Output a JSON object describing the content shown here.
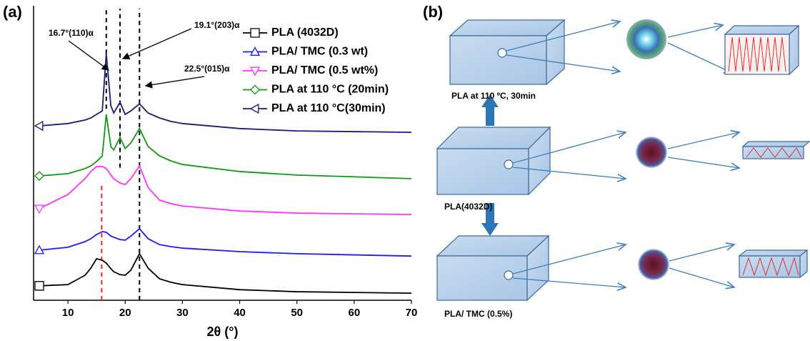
{
  "chart_data": {
    "type": "line",
    "panel_label": "(a)",
    "x_label": "2θ (°)",
    "xlim": [
      4,
      70
    ],
    "xticks": [
      10,
      20,
      30,
      40,
      50,
      60,
      70
    ],
    "ylim": [
      0,
      100
    ],
    "legend": "upper right",
    "x": [
      5,
      10,
      13,
      14,
      15,
      16,
      16.7,
      17.5,
      18,
      19.1,
      20,
      21,
      22.5,
      24,
      26,
      28,
      30,
      40,
      50,
      70
    ],
    "series": [
      {
        "name": "PLA (4032D)",
        "color": "#000000",
        "marker": "square",
        "values": [
          4.9,
          5.3,
          8.5,
          10.9,
          14.1,
          13.6,
          12.6,
          10.7,
          9.7,
          8.7,
          8.5,
          10.2,
          15.8,
          10.9,
          7.3,
          6.1,
          5.3,
          3.6,
          2.9,
          2.4
        ]
      },
      {
        "name": "PLA/ TMC (0.3 wt)",
        "color": "#1a1aff",
        "marker": "triangle-up",
        "values": [
          17.0,
          18.0,
          19.9,
          20.9,
          22.3,
          23.3,
          23.1,
          21.8,
          21.4,
          20.6,
          20.4,
          21.8,
          24.3,
          20.9,
          18.9,
          18.2,
          17.7,
          16.5,
          15.8,
          15.0
        ]
      },
      {
        "name": "PLA/ TMC (0.5 wt%)",
        "color": "#ff33ff",
        "marker": "triangle-down",
        "values": [
          31.1,
          35.9,
          41.3,
          43.7,
          45.4,
          45.4,
          44.7,
          42.5,
          41.3,
          39.8,
          39.3,
          41.3,
          45.6,
          38.3,
          34.0,
          32.8,
          32.0,
          30.3,
          29.6,
          29.1
        ]
      },
      {
        "name": "PLA at 110 °C (20min)",
        "color": "#119911",
        "marker": "diamond",
        "values": [
          42.2,
          43.0,
          44.7,
          45.6,
          47.1,
          49.0,
          63.1,
          52.2,
          51.0,
          55.3,
          51.5,
          53.4,
          58.3,
          52.2,
          49.0,
          47.3,
          46.1,
          43.7,
          42.5,
          41.3
        ]
      },
      {
        "name": "PLA at 110 °C(30min)",
        "color": "#1a1a7a",
        "marker": "triangle-left",
        "values": [
          59.2,
          60.0,
          61.2,
          61.9,
          63.1,
          64.3,
          83.7,
          66.0,
          63.6,
          67.2,
          63.1,
          64.3,
          66.7,
          63.6,
          61.9,
          60.7,
          60.0,
          58.3,
          57.5,
          57.0
        ]
      }
    ],
    "reference_lines": [
      {
        "x": 16.7,
        "color": "#000000",
        "ymin": 65,
        "ymax": 99
      },
      {
        "x": 19.1,
        "color": "#000000",
        "ymin": 45,
        "ymax": 99
      },
      {
        "x": 22.5,
        "color": "#000000",
        "ymin": 0,
        "ymax": 99
      },
      {
        "x": 15.9,
        "color": "#ff2020",
        "ymin": 0,
        "ymax": 40
      }
    ],
    "annotations": [
      {
        "text": "16.7°(110)α",
        "x": 16.7
      },
      {
        "text": "19.1°(203)α",
        "x": 19.1
      },
      {
        "text": "22.5°(015)α",
        "x": 22.5
      }
    ]
  },
  "diagram": {
    "panel_label": "(b)",
    "captions": [
      "PLA at 110 ºC, 30min",
      "PLA(4032D)",
      "PLA/ TMC (0.5%)"
    ]
  }
}
